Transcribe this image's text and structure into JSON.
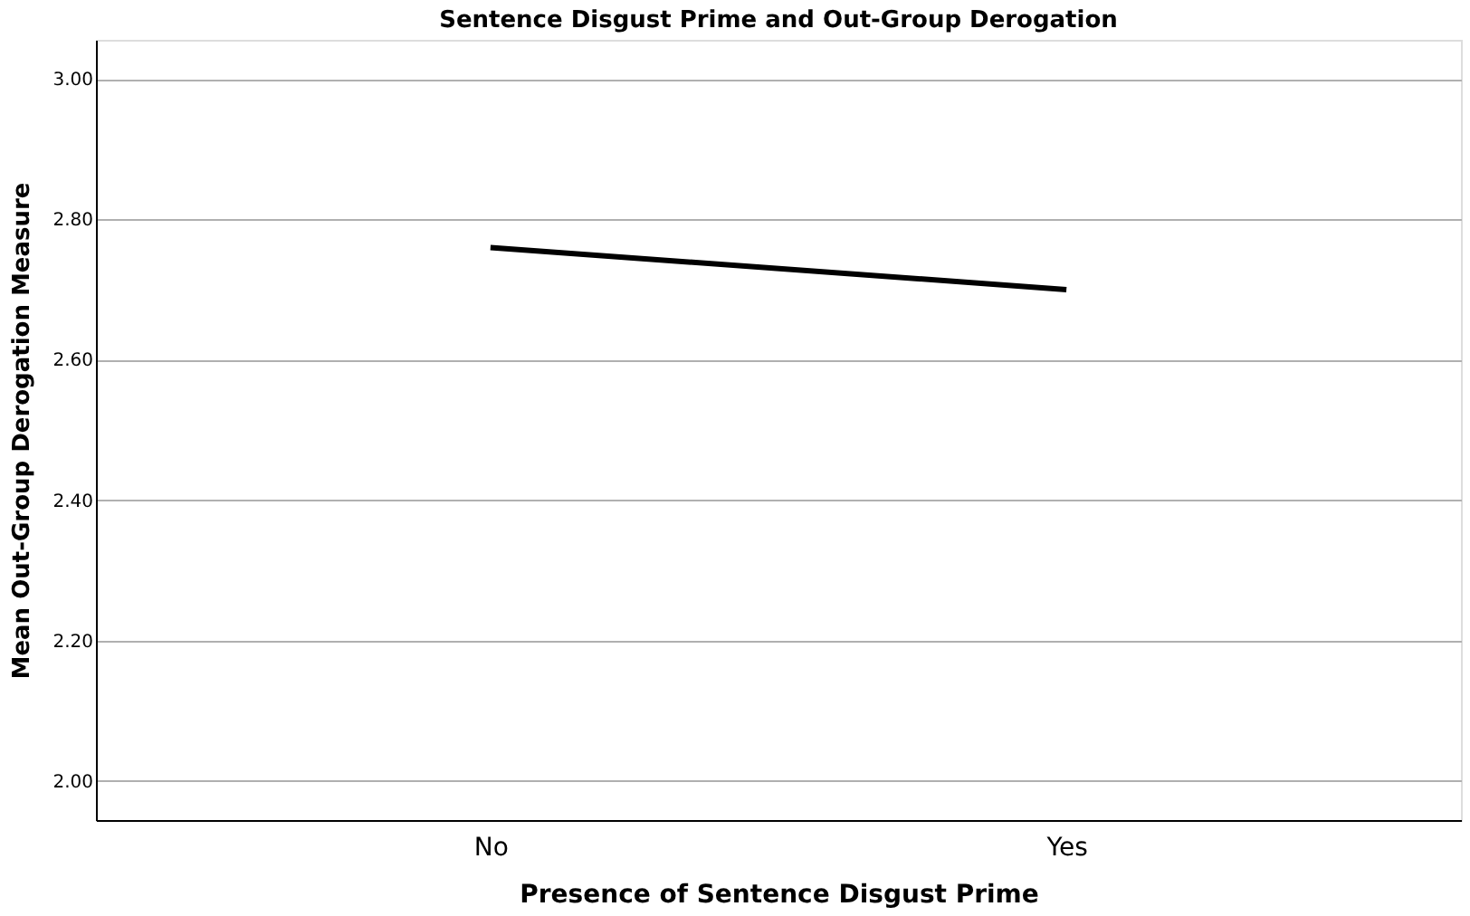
{
  "chart_data": {
    "type": "line",
    "title": "Sentence Disgust Prime and Out-Group Derogation",
    "xlabel": "Presence of Sentence Disgust Prime",
    "ylabel": "Mean Out-Group Derogation Measure",
    "categories": [
      "No",
      "Yes"
    ],
    "series": [
      {
        "color": "#000000",
        "values": [
          2.76,
          2.7
        ]
      }
    ],
    "ylim": [
      1.944,
      3.056
    ],
    "yticks": [
      {
        "value": 2.0,
        "label": "2.00"
      },
      {
        "value": 2.2,
        "label": "2.20"
      },
      {
        "value": 2.4,
        "label": "2.40"
      },
      {
        "value": 2.6,
        "label": "2.60"
      },
      {
        "value": 2.8,
        "label": "2.80"
      },
      {
        "value": 3.0,
        "label": "3.00"
      }
    ],
    "grid": "y",
    "legend": false,
    "marker": "none",
    "line_style": "solid"
  }
}
